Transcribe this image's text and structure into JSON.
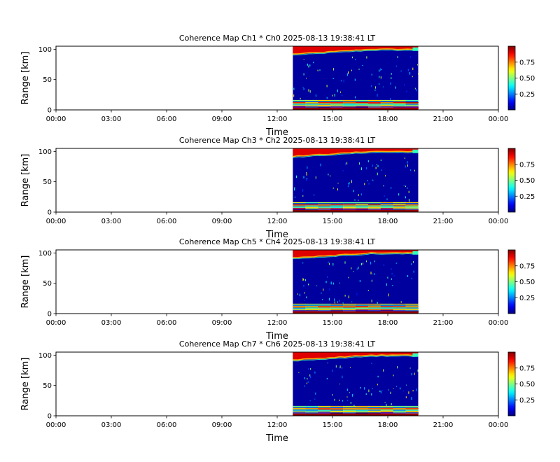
{
  "chart_data": [
    {
      "type": "heatmap",
      "title": "Coherence Map Ch1 * Ch0 2025-08-13 19:38:41 LT",
      "xlabel": "Time",
      "ylabel": "Range [km]",
      "xticks": [
        "00:00",
        "03:00",
        "06:00",
        "09:00",
        "12:00",
        "15:00",
        "18:00",
        "21:00",
        "00:00"
      ],
      "xlim_hours": [
        0,
        24
      ],
      "yticks": [
        "0",
        "50",
        "100"
      ],
      "ylim": [
        0,
        105
      ],
      "data_extent_hours": [
        12.85,
        19.65
      ],
      "colorbar": {
        "colormap": "jet",
        "range": [
          0,
          1
        ],
        "ticks": [
          "0.25",
          "0.50",
          "0.75"
        ]
      }
    },
    {
      "type": "heatmap",
      "title": "Coherence Map Ch3 * Ch2 2025-08-13 19:38:41 LT",
      "xlabel": "Time",
      "ylabel": "Range [km]",
      "xticks": [
        "00:00",
        "03:00",
        "06:00",
        "09:00",
        "12:00",
        "15:00",
        "18:00",
        "21:00",
        "00:00"
      ],
      "xlim_hours": [
        0,
        24
      ],
      "yticks": [
        "0",
        "50",
        "100"
      ],
      "ylim": [
        0,
        105
      ],
      "data_extent_hours": [
        12.85,
        19.65
      ],
      "colorbar": {
        "colormap": "jet",
        "range": [
          0,
          1
        ],
        "ticks": [
          "0.25",
          "0.50",
          "0.75"
        ]
      }
    },
    {
      "type": "heatmap",
      "title": "Coherence Map Ch5 * Ch4 2025-08-13 19:38:41 LT",
      "xlabel": "Time",
      "ylabel": "Range [km]",
      "xticks": [
        "00:00",
        "03:00",
        "06:00",
        "09:00",
        "12:00",
        "15:00",
        "18:00",
        "21:00",
        "00:00"
      ],
      "xlim_hours": [
        0,
        24
      ],
      "yticks": [
        "0",
        "50",
        "100"
      ],
      "ylim": [
        0,
        105
      ],
      "data_extent_hours": [
        12.85,
        19.65
      ],
      "colorbar": {
        "colormap": "jet",
        "range": [
          0,
          1
        ],
        "ticks": [
          "0.25",
          "0.50",
          "0.75"
        ]
      }
    },
    {
      "type": "heatmap",
      "title": "Coherence Map Ch7 * Ch6 2025-08-13 19:38:41 LT",
      "xlabel": "Time",
      "ylabel": "Range [km]",
      "xticks": [
        "00:00",
        "03:00",
        "06:00",
        "09:00",
        "12:00",
        "15:00",
        "18:00",
        "21:00",
        "00:00"
      ],
      "xlim_hours": [
        0,
        24
      ],
      "yticks": [
        "0",
        "50",
        "100"
      ],
      "ylim": [
        0,
        105
      ],
      "data_extent_hours": [
        12.85,
        19.65
      ],
      "colorbar": {
        "colormap": "jet",
        "range": [
          0,
          1
        ],
        "ticks": [
          "0.25",
          "0.50",
          "0.75"
        ]
      }
    }
  ]
}
